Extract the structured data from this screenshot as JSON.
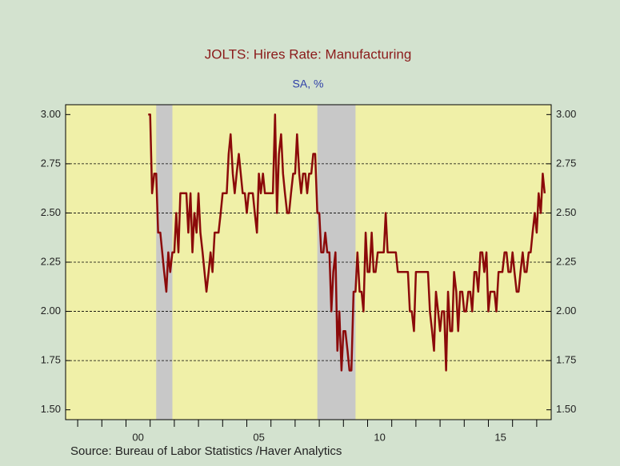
{
  "chart_data": {
    "type": "line",
    "title": "JOLTS: Hires Rate: Manufacturing",
    "subtitle": "SA, %",
    "source": "Source:   Bureau of Labor Statistics /Haver Analytics",
    "xlim": [
      1997.5,
      2017.6
    ],
    "xticks": [
      {
        "value": 2000.5,
        "label": "00"
      },
      {
        "value": 2005.5,
        "label": "05"
      },
      {
        "value": 2010.5,
        "label": "10"
      },
      {
        "value": 2015.5,
        "label": "15"
      }
    ],
    "xticks_minor": [
      1998,
      1999,
      2000,
      2001,
      2002,
      2003,
      2004,
      2005,
      2006,
      2007,
      2008,
      2009,
      2010,
      2011,
      2012,
      2013,
      2014,
      2015,
      2016,
      2017
    ],
    "ylim": [
      1.45,
      3.05
    ],
    "yticks": [
      {
        "value": 1.5,
        "label": "1.50"
      },
      {
        "value": 1.75,
        "label": "1.75"
      },
      {
        "value": 2,
        "label": "2.00"
      },
      {
        "value": 2.25,
        "label": "2.25"
      },
      {
        "value": 2.5,
        "label": "2.50"
      },
      {
        "value": 2.75,
        "label": "2.75"
      },
      {
        "value": 3,
        "label": "3.00"
      }
    ],
    "grid": true,
    "shaded": [
      [
        2001.25,
        2001.92
      ],
      [
        2007.92,
        2009.5
      ]
    ],
    "plot_color": "#f0f0a8",
    "shade_color": "#c8c8c8",
    "series": [
      {
        "name": "Hires Rate: Manufacturing",
        "color": "#8b0a0a",
        "x": [
          2000.92,
          2001.0,
          2001.08,
          2001.17,
          2001.25,
          2001.33,
          2001.42,
          2001.5,
          2001.58,
          2001.67,
          2001.75,
          2001.83,
          2001.92,
          2002.0,
          2002.08,
          2002.17,
          2002.25,
          2002.33,
          2002.42,
          2002.5,
          2002.58,
          2002.67,
          2002.75,
          2002.83,
          2002.92,
          2003.0,
          2003.08,
          2003.17,
          2003.25,
          2003.33,
          2003.42,
          2003.5,
          2003.58,
          2003.67,
          2003.75,
          2003.83,
          2003.92,
          2004.0,
          2004.08,
          2004.17,
          2004.25,
          2004.33,
          2004.42,
          2004.5,
          2004.58,
          2004.67,
          2004.75,
          2004.83,
          2004.92,
          2005.0,
          2005.08,
          2005.17,
          2005.25,
          2005.33,
          2005.42,
          2005.5,
          2005.58,
          2005.67,
          2005.75,
          2005.83,
          2005.92,
          2006.0,
          2006.08,
          2006.17,
          2006.25,
          2006.33,
          2006.42,
          2006.5,
          2006.58,
          2006.67,
          2006.75,
          2006.83,
          2006.92,
          2007.0,
          2007.08,
          2007.17,
          2007.25,
          2007.33,
          2007.42,
          2007.5,
          2007.58,
          2007.67,
          2007.75,
          2007.83,
          2007.92,
          2008.0,
          2008.08,
          2008.17,
          2008.25,
          2008.33,
          2008.42,
          2008.5,
          2008.58,
          2008.67,
          2008.75,
          2008.83,
          2008.92,
          2009.0,
          2009.08,
          2009.17,
          2009.25,
          2009.33,
          2009.42,
          2009.5,
          2009.58,
          2009.67,
          2009.75,
          2009.83,
          2009.92,
          2010.0,
          2010.08,
          2010.17,
          2010.25,
          2010.33,
          2010.42,
          2010.5,
          2010.58,
          2010.67,
          2010.75,
          2010.83,
          2010.92,
          2011.0,
          2011.08,
          2011.17,
          2011.25,
          2011.33,
          2011.42,
          2011.5,
          2011.58,
          2011.67,
          2011.75,
          2011.83,
          2011.92,
          2012.0,
          2012.08,
          2012.17,
          2012.25,
          2012.33,
          2012.42,
          2012.5,
          2012.58,
          2012.67,
          2012.75,
          2012.83,
          2012.92,
          2013.0,
          2013.08,
          2013.17,
          2013.25,
          2013.33,
          2013.42,
          2013.5,
          2013.58,
          2013.67,
          2013.75,
          2013.83,
          2013.92,
          2014.0,
          2014.08,
          2014.17,
          2014.25,
          2014.33,
          2014.42,
          2014.5,
          2014.58,
          2014.67,
          2014.75,
          2014.83,
          2014.92,
          2015.0,
          2015.08,
          2015.17,
          2015.25,
          2015.33,
          2015.42,
          2015.5,
          2015.58,
          2015.67,
          2015.75,
          2015.83,
          2015.92,
          2016.0,
          2016.08,
          2016.17,
          2016.25,
          2016.33,
          2016.42,
          2016.5,
          2016.58,
          2016.67,
          2016.75,
          2016.83,
          2016.92,
          2017.0,
          2017.08,
          2017.17,
          2017.25,
          2017.33
        ],
        "values": [
          3.0,
          3.0,
          2.6,
          2.7,
          2.7,
          2.4,
          2.4,
          2.3,
          2.2,
          2.1,
          2.3,
          2.2,
          2.3,
          2.3,
          2.5,
          2.3,
          2.6,
          2.6,
          2.6,
          2.6,
          2.4,
          2.6,
          2.3,
          2.5,
          2.4,
          2.6,
          2.4,
          2.3,
          2.2,
          2.1,
          2.2,
          2.3,
          2.2,
          2.4,
          2.4,
          2.4,
          2.5,
          2.6,
          2.6,
          2.6,
          2.8,
          2.9,
          2.7,
          2.6,
          2.7,
          2.8,
          2.7,
          2.6,
          2.6,
          2.5,
          2.6,
          2.6,
          2.6,
          2.5,
          2.4,
          2.7,
          2.6,
          2.7,
          2.6,
          2.6,
          2.6,
          2.6,
          2.6,
          3.0,
          2.5,
          2.8,
          2.9,
          2.7,
          2.6,
          2.5,
          2.5,
          2.6,
          2.7,
          2.7,
          2.9,
          2.7,
          2.6,
          2.7,
          2.7,
          2.6,
          2.7,
          2.7,
          2.8,
          2.8,
          2.5,
          2.5,
          2.3,
          2.3,
          2.4,
          2.3,
          2.3,
          2.0,
          2.2,
          2.3,
          1.8,
          2.0,
          1.7,
          1.9,
          1.9,
          1.8,
          1.7,
          1.7,
          2.1,
          2.1,
          2.3,
          2.1,
          2.1,
          2.0,
          2.4,
          2.2,
          2.2,
          2.4,
          2.2,
          2.2,
          2.3,
          2.3,
          2.3,
          2.3,
          2.5,
          2.3,
          2.3,
          2.3,
          2.3,
          2.3,
          2.2,
          2.2,
          2.2,
          2.2,
          2.2,
          2.2,
          2.0,
          2.0,
          1.9,
          2.2,
          2.2,
          2.2,
          2.2,
          2.2,
          2.2,
          2.2,
          2.0,
          1.9,
          1.8,
          2.1,
          2.0,
          1.9,
          2.0,
          2.0,
          1.7,
          2.1,
          1.9,
          1.9,
          2.2,
          2.1,
          1.9,
          2.1,
          2.1,
          2.0,
          2.0,
          2.1,
          2.1,
          2.0,
          2.2,
          2.2,
          2.1,
          2.3,
          2.3,
          2.2,
          2.3,
          2.0,
          2.1,
          2.1,
          2.1,
          2.0,
          2.2,
          2.2,
          2.2,
          2.3,
          2.3,
          2.2,
          2.2,
          2.3,
          2.2,
          2.1,
          2.1,
          2.2,
          2.3,
          2.2,
          2.2,
          2.3,
          2.3,
          2.4,
          2.5,
          2.4,
          2.6,
          2.5,
          2.7,
          2.6
        ]
      }
    ]
  }
}
